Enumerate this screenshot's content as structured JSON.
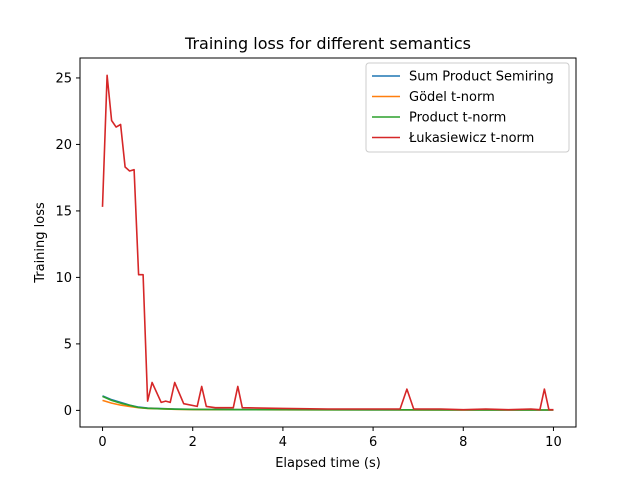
{
  "chart_data": {
    "type": "line",
    "title": "Training loss for different semantics",
    "xlabel": "Elapsed time (s)",
    "ylabel": "Training loss",
    "xlim": [
      -0.5,
      10.5
    ],
    "ylim": [
      -1.25,
      26.5
    ],
    "xticks": [
      0,
      2,
      4,
      6,
      8,
      10
    ],
    "yticks": [
      0,
      5,
      10,
      15,
      20,
      25
    ],
    "grid": false,
    "legend_position": "top-right",
    "series": [
      {
        "name": "Sum Product Semiring",
        "color": "#1f77b4",
        "x": [
          0,
          0.2,
          0.4,
          0.6,
          0.8,
          1.0,
          1.3,
          1.6,
          2.0,
          2.5,
          3.0,
          4.0,
          5.0,
          6.0,
          7.0,
          8.0,
          9.0,
          10.0
        ],
        "y": [
          1.1,
          0.8,
          0.6,
          0.4,
          0.25,
          0.18,
          0.14,
          0.1,
          0.08,
          0.07,
          0.06,
          0.05,
          0.05,
          0.04,
          0.04,
          0.04,
          0.03,
          0.03
        ]
      },
      {
        "name": "Gödel t-norm",
        "color": "#ff7f0e",
        "x": [
          0,
          0.2,
          0.4,
          0.6,
          0.8,
          1.0,
          1.3,
          1.6,
          2.0,
          2.5,
          3.0,
          4.0,
          5.0,
          6.0,
          7.0,
          8.0,
          9.0,
          10.0
        ],
        "y": [
          0.75,
          0.55,
          0.4,
          0.3,
          0.2,
          0.15,
          0.12,
          0.08,
          0.06,
          0.05,
          0.05,
          0.04,
          0.04,
          0.04,
          0.03,
          0.03,
          0.03,
          0.03
        ]
      },
      {
        "name": "Product t-norm",
        "color": "#2ca02c",
        "x": [
          0,
          0.2,
          0.4,
          0.6,
          0.8,
          1.0,
          1.3,
          1.6,
          2.0,
          2.5,
          3.0,
          4.0,
          5.0,
          6.0,
          7.0,
          8.0,
          9.0,
          10.0
        ],
        "y": [
          1.05,
          0.75,
          0.55,
          0.38,
          0.22,
          0.16,
          0.12,
          0.09,
          0.07,
          0.06,
          0.05,
          0.05,
          0.04,
          0.04,
          0.04,
          0.03,
          0.03,
          0.03
        ]
      },
      {
        "name": "Łukasiewicz t-norm",
        "color": "#d62728",
        "x": [
          0,
          0.1,
          0.2,
          0.3,
          0.4,
          0.5,
          0.6,
          0.7,
          0.8,
          0.9,
          1.0,
          1.1,
          1.3,
          1.4,
          1.5,
          1.6,
          1.8,
          2.1,
          2.2,
          2.3,
          2.5,
          2.9,
          3.0,
          3.1,
          4.0,
          5.0,
          6.0,
          6.6,
          6.75,
          6.9,
          7.5,
          8.0,
          8.5,
          9.0,
          9.5,
          9.7,
          9.8,
          9.9,
          10.0
        ],
        "y": [
          15.3,
          25.2,
          21.8,
          21.3,
          21.5,
          18.3,
          18.0,
          18.1,
          10.2,
          10.2,
          0.7,
          2.1,
          0.6,
          0.7,
          0.6,
          2.1,
          0.5,
          0.3,
          1.8,
          0.3,
          0.2,
          0.2,
          1.8,
          0.2,
          0.15,
          0.1,
          0.1,
          0.1,
          1.6,
          0.1,
          0.1,
          0.05,
          0.1,
          0.05,
          0.1,
          0.05,
          1.6,
          0.05,
          0.05
        ]
      }
    ]
  }
}
